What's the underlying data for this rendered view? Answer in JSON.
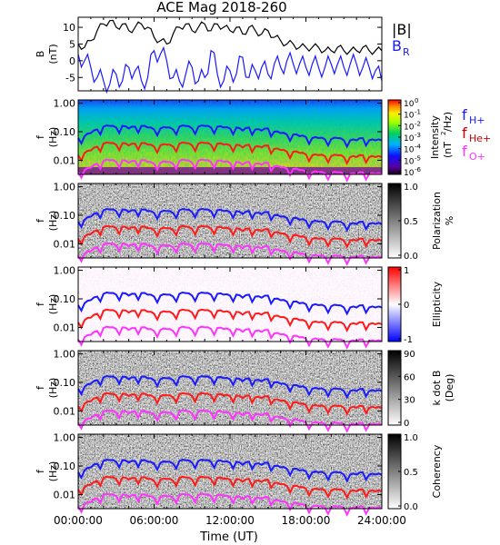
{
  "chart_data": {
    "type": "figure",
    "title": "ACE Mag 2018-260",
    "xlabel": "Time (UT)",
    "x_ticks": [
      "00:00:00",
      "06:00:00",
      "12:00:00",
      "18:00:00",
      "24:00:00"
    ],
    "x_range_hours": [
      0,
      24
    ],
    "line_colors": {
      "f_h": "#1a1aff",
      "f_he": "#ff1a1a",
      "f_o": "#ff33ff"
    },
    "panels": [
      {
        "kind": "line",
        "ylabel_top": "B",
        "ylabel_bottom": "(nT)",
        "ylim": [
          -9,
          13
        ],
        "yticks": [
          "10",
          "5",
          "0",
          "-5"
        ],
        "ytick_values": [
          10,
          5,
          0,
          -5
        ],
        "legend": [
          {
            "label": "|B|",
            "sub": "",
            "color": "#000000"
          },
          {
            "label": "B",
            "sub": "R",
            "color": "#1a1aff"
          }
        ],
        "series": [
          {
            "name": "|B|",
            "color": "#000000",
            "t": [
              0,
              0.5,
              1,
              1.5,
              2,
              2.5,
              3,
              3.5,
              4,
              4.5,
              5,
              5.5,
              6,
              6.5,
              7,
              7.5,
              8,
              8.5,
              9,
              9.5,
              10,
              10.5,
              11,
              11.5,
              12,
              12.5,
              13,
              13.5,
              14,
              14.5,
              15,
              15.5,
              16,
              16.5,
              17,
              17.5,
              18,
              18.5,
              19,
              19.5,
              20,
              20.5,
              21,
              21.5,
              22,
              22.5,
              23,
              23.5,
              24
            ],
            "values": [
              5,
              4,
              6,
              9,
              11,
              12,
              10,
              11,
              9,
              10,
              11,
              10,
              7,
              6,
              5,
              8,
              10,
              11,
              9,
              10,
              11,
              9,
              11,
              10,
              9,
              10,
              8,
              10,
              9,
              8,
              9,
              7,
              6,
              5,
              5,
              4,
              4,
              4,
              4,
              3,
              3,
              4,
              3,
              3,
              3,
              4,
              3,
              3,
              3
            ]
          },
          {
            "name": "B_R",
            "color": "#1a1aff",
            "t": [
              0,
              0.5,
              1,
              1.5,
              2,
              2.5,
              3,
              3.5,
              4,
              4.5,
              5,
              5.5,
              6,
              6.5,
              7,
              7.5,
              8,
              8.5,
              9,
              9.5,
              10,
              10.5,
              11,
              11.5,
              12,
              12.5,
              13,
              13.5,
              14,
              14.5,
              15,
              15.5,
              16,
              16.5,
              17,
              17.5,
              18,
              18.5,
              19,
              19.5,
              20,
              20.5,
              21,
              21.5,
              22,
              22.5,
              23,
              23.5,
              24
            ],
            "values": [
              2,
              0,
              -2,
              -5,
              -6,
              -7,
              -4,
              -6,
              -2,
              -3,
              -6,
              -5,
              3,
              2,
              0,
              -5,
              -6,
              -4,
              -2,
              -6,
              -5,
              3,
              -4,
              -6,
              -3,
              -4,
              1,
              -5,
              -3,
              -2,
              -4,
              -1,
              -2,
              0,
              -1,
              -1,
              -2,
              -1,
              -2,
              -2,
              -1,
              -1,
              -2,
              -1,
              -1,
              -2,
              -2,
              -3,
              -6
            ]
          }
        ]
      },
      {
        "kind": "spectrogram",
        "scheme": "rainbow",
        "ylabel_top": "f",
        "ylabel_bottom": "(Hz)",
        "yticks": [
          "1.00",
          "0.10",
          "0.01"
        ],
        "colorbar": {
          "ticks": [
            {
              "base": "10",
              "exp": "0"
            },
            {
              "base": "10",
              "exp": "-1"
            },
            {
              "base": "10",
              "exp": "-2"
            },
            {
              "base": "10",
              "exp": "-3"
            },
            {
              "base": "10",
              "exp": "-4"
            },
            {
              "base": "10",
              "exp": "-5"
            },
            {
              "base": "10",
              "exp": "-6"
            }
          ],
          "label_top": "Intensity",
          "label_bottom_pre": "(nT",
          "label_bottom_exp": "2",
          "label_bottom_post": "/Hz)"
        },
        "legend": [
          {
            "label": "f",
            "sub": "H+",
            "color": "#1a1aff"
          },
          {
            "label": "f",
            "sub": "He+",
            "color": "#cc0000"
          },
          {
            "label": "f",
            "sub": "O+",
            "color": "#ff33ff"
          }
        ]
      },
      {
        "kind": "spectrogram",
        "scheme": "gray",
        "ylabel_top": "f",
        "ylabel_bottom": "(Hz)",
        "yticks": [
          "1.00",
          "0.10",
          "0.01"
        ],
        "colorbar": {
          "ticks": [
            "1.0",
            "0.5",
            "0.0"
          ],
          "label_top": "Polarization",
          "label_bottom": "%"
        }
      },
      {
        "kind": "spectrogram",
        "scheme": "bwr",
        "ylabel_top": "f",
        "ylabel_bottom": "(Hz)",
        "yticks": [
          "1.00",
          "0.10",
          "0.01"
        ],
        "colorbar": {
          "ticks": [
            "1",
            "0",
            "-1"
          ],
          "label_top": "Ellipticity",
          "label_bottom": ""
        }
      },
      {
        "kind": "spectrogram",
        "scheme": "gray",
        "ylabel_top": "f",
        "ylabel_bottom": "(Hz)",
        "yticks": [
          "1.00",
          "0.10",
          "0.01"
        ],
        "colorbar": {
          "ticks": [
            "90",
            "60",
            "30",
            "0"
          ],
          "label_top": "k dot B",
          "label_bottom": "(Deg)"
        }
      },
      {
        "kind": "spectrogram",
        "scheme": "gray",
        "ylabel_top": "f",
        "ylabel_bottom": "(Hz)",
        "yticks": [
          "1.00",
          "0.10",
          "0.01"
        ],
        "colorbar": {
          "ticks": [
            "1.0",
            "0.5",
            "0.0"
          ],
          "label_top": "Coherency",
          "label_bottom": ""
        }
      }
    ],
    "gyrofrequency_hz": {
      "t": [
        0,
        0.5,
        1,
        1.5,
        2,
        2.5,
        3,
        3.5,
        4,
        4.5,
        5,
        5.5,
        6,
        6.5,
        7,
        7.5,
        8,
        8.5,
        9,
        9.5,
        10,
        10.5,
        11,
        11.5,
        12,
        12.5,
        13,
        13.5,
        14,
        14.5,
        15,
        15.5,
        16,
        16.5,
        17,
        17.5,
        18,
        18.5,
        19,
        19.5,
        20,
        20.5,
        21,
        21.5,
        22,
        22.5,
        23,
        23.5,
        24
      ],
      "f_h": [
        0.06,
        0.07,
        0.09,
        0.12,
        0.15,
        0.16,
        0.14,
        0.16,
        0.13,
        0.15,
        0.16,
        0.14,
        0.12,
        0.13,
        0.14,
        0.12,
        0.15,
        0.16,
        0.13,
        0.15,
        0.16,
        0.14,
        0.15,
        0.14,
        0.13,
        0.14,
        0.11,
        0.14,
        0.12,
        0.11,
        0.13,
        0.1,
        0.09,
        0.08,
        0.08,
        0.07,
        0.065,
        0.06,
        0.06,
        0.055,
        0.055,
        0.06,
        0.05,
        0.05,
        0.05,
        0.06,
        0.05,
        0.05,
        0.05
      ],
      "f_he": [
        0.015,
        0.018,
        0.022,
        0.03,
        0.038,
        0.04,
        0.035,
        0.04,
        0.033,
        0.038,
        0.04,
        0.035,
        0.03,
        0.033,
        0.035,
        0.03,
        0.038,
        0.04,
        0.033,
        0.038,
        0.04,
        0.035,
        0.038,
        0.035,
        0.033,
        0.035,
        0.028,
        0.035,
        0.03,
        0.028,
        0.033,
        0.025,
        0.023,
        0.02,
        0.02,
        0.018,
        0.016,
        0.015,
        0.015,
        0.014,
        0.014,
        0.015,
        0.013,
        0.013,
        0.013,
        0.015,
        0.013,
        0.013,
        0.013
      ],
      "f_o": [
        0.0038,
        0.0045,
        0.0055,
        0.0075,
        0.0095,
        0.01,
        0.0088,
        0.01,
        0.0082,
        0.0095,
        0.01,
        0.0088,
        0.0075,
        0.0082,
        0.0088,
        0.0075,
        0.0095,
        0.01,
        0.0082,
        0.0095,
        0.01,
        0.0088,
        0.0095,
        0.0088,
        0.0082,
        0.0088,
        0.007,
        0.0088,
        0.0075,
        0.007,
        0.0082,
        0.0062,
        0.0057,
        0.005,
        0.005,
        0.0045,
        0.004,
        0.0038,
        0.0038,
        0.0035,
        0.0035,
        0.0038,
        0.0033,
        0.0033,
        0.0033,
        0.0038,
        0.0033,
        0.0033,
        0.0033
      ]
    }
  }
}
